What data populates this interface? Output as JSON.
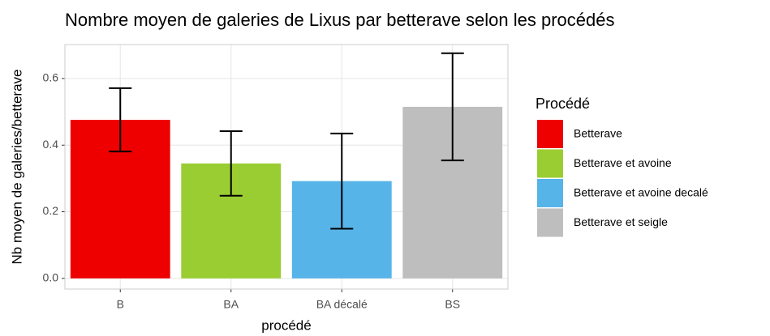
{
  "chart_data": {
    "type": "bar",
    "title": "Nombre moyen de galeries de Lixus par betterave selon les procédés",
    "x_label": "procédé",
    "y_label": "Nb moyen de galeries/betterave",
    "categories": [
      "B",
      "BA",
      "BA décalé",
      "BS"
    ],
    "values": [
      0.476,
      0.345,
      0.292,
      0.515
    ],
    "errors": [
      0.095,
      0.097,
      0.143,
      0.161
    ],
    "colors": [
      "#ee0000",
      "#9acd32",
      "#56b4e9",
      "#bebebe"
    ],
    "legend_title": "Procédé",
    "legend_labels": [
      "Betterave",
      "Betterave et avoine",
      "Betterave et avoine decalé",
      "Betterave et seigle"
    ],
    "legend_position": "right",
    "ylim": [
      -0.032,
      0.702
    ],
    "yticks": [
      {
        "value": 0,
        "label": "0.0"
      },
      {
        "value": 0.2,
        "label": "0.2"
      },
      {
        "value": 0.4,
        "label": "0.4"
      },
      {
        "value": 0.6,
        "label": "0.6"
      }
    ],
    "grid": true
  }
}
